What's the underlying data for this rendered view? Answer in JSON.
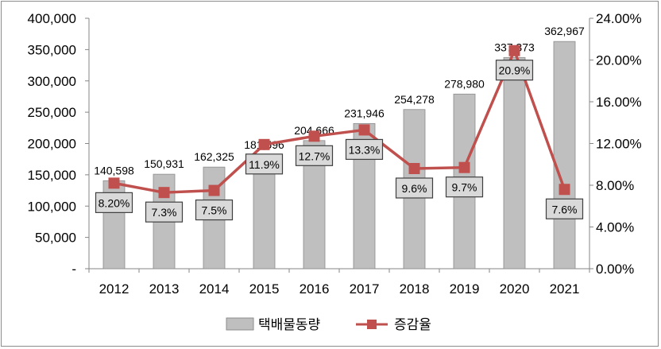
{
  "chart_data": {
    "type": "bar",
    "categories": [
      "2012",
      "2013",
      "2014",
      "2015",
      "2016",
      "2017",
      "2018",
      "2019",
      "2020",
      "2021"
    ],
    "series": [
      {
        "name": "택배물동량",
        "type": "bar",
        "axis": "left",
        "values": [
          140598,
          150931,
          162325,
          181596,
          204666,
          231946,
          254278,
          278980,
          337373,
          362967
        ],
        "labels": [
          "140,598",
          "150,931",
          "162,325",
          "181,596",
          "204,666",
          "231,946",
          "254,278",
          "278,980",
          "337,373",
          "362,967"
        ],
        "color": "#bfbfbf"
      },
      {
        "name": "증감율",
        "type": "line",
        "axis": "right",
        "values": [
          8.2,
          7.3,
          7.5,
          11.9,
          12.7,
          13.3,
          9.6,
          9.7,
          20.9,
          7.6
        ],
        "labels": [
          "8.20%",
          "7.3%",
          "7.5%",
          "11.9%",
          "12.7%",
          "13.3%",
          "9.6%",
          "9.7%",
          "20.9%",
          "7.6%"
        ],
        "color": "#c0504d"
      }
    ],
    "y_left": {
      "range": [
        0,
        400000
      ],
      "ticks": [
        0,
        50000,
        100000,
        150000,
        200000,
        250000,
        300000,
        350000,
        400000
      ],
      "tick_labels": [
        "-",
        "50,000",
        "100,000",
        "150,000",
        "200,000",
        "250,000",
        "300,000",
        "350,000",
        "400,000"
      ]
    },
    "y_right": {
      "range": [
        0,
        24
      ],
      "ticks": [
        0,
        4,
        8,
        12,
        16,
        20,
        24
      ],
      "tick_labels": [
        "0.00%",
        "4.00%",
        "8.00%",
        "12.00%",
        "16.00%",
        "20.00%",
        "24.00%"
      ]
    },
    "grid": false,
    "legend_position": "bottom"
  }
}
